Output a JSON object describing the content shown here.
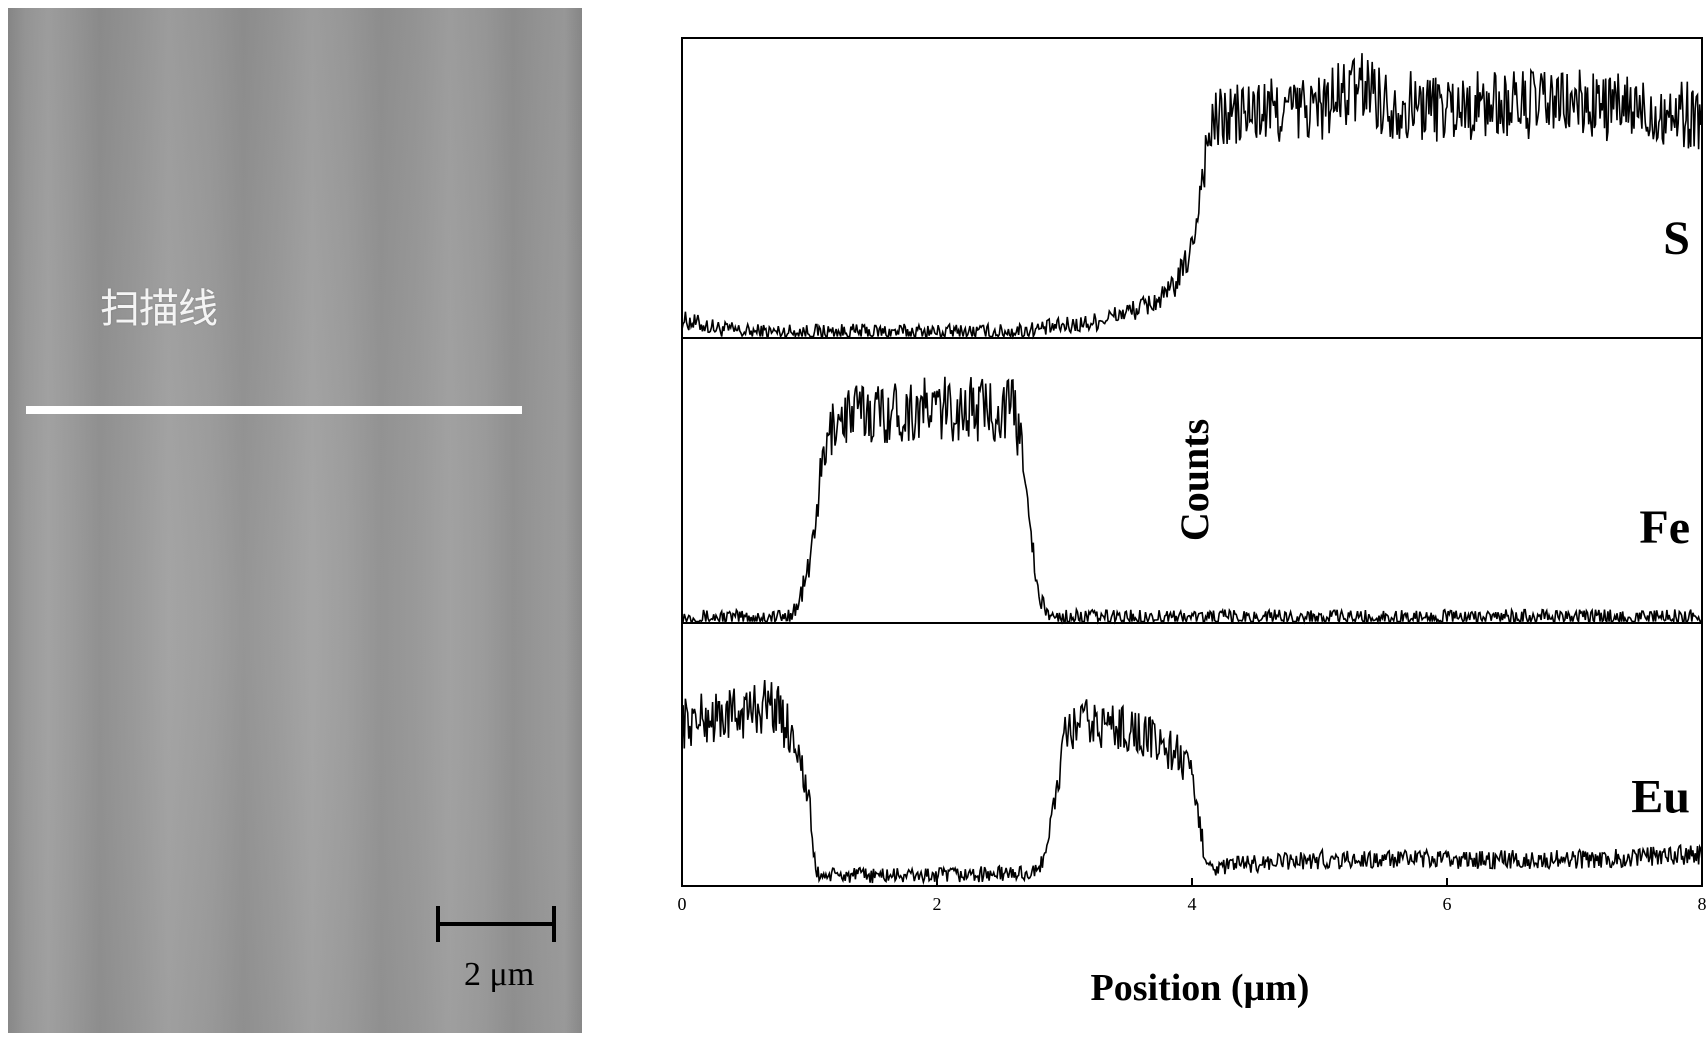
{
  "sem_image": {
    "scan_label": "扫描线",
    "scale_label": "2 μm"
  },
  "chart_data": {
    "type": "line",
    "xlabel": "Position (μm)",
    "ylabel": "Counts",
    "xlim": [
      0,
      8
    ],
    "x_ticks": [
      0,
      2,
      4,
      6,
      8
    ],
    "grid": false,
    "series": [
      {
        "name": "S",
        "x": [
          0,
          0.3,
          0.5,
          1,
          1.5,
          2,
          2.5,
          2.8,
          3.2,
          3.6,
          3.8,
          3.9,
          4.0,
          4.05,
          4.1,
          4.15,
          4.2,
          4.3,
          4.5,
          5,
          5.4,
          5.5,
          6,
          6.5,
          7,
          7.5,
          8
        ],
        "y": [
          0.06,
          0.03,
          0.02,
          0.02,
          0.02,
          0.02,
          0.02,
          0.03,
          0.05,
          0.1,
          0.14,
          0.2,
          0.3,
          0.45,
          0.6,
          0.7,
          0.72,
          0.74,
          0.75,
          0.77,
          0.85,
          0.78,
          0.77,
          0.78,
          0.78,
          0.76,
          0.74
        ]
      },
      {
        "name": "Fe",
        "x": [
          0,
          0.8,
          0.9,
          1.0,
          1.1,
          1.2,
          1.4,
          2,
          2.6,
          2.7,
          2.75,
          2.8,
          2.9,
          3.0,
          5,
          8
        ],
        "y": [
          0.02,
          0.02,
          0.05,
          0.2,
          0.55,
          0.72,
          0.74,
          0.75,
          0.75,
          0.55,
          0.25,
          0.08,
          0.02,
          0.02,
          0.02,
          0.02
        ]
      },
      {
        "name": "Eu",
        "x": [
          0,
          0.5,
          0.7,
          0.9,
          1.0,
          1.05,
          1.1,
          1.5,
          2,
          2.8,
          2.9,
          3.0,
          3.1,
          3.5,
          3.9,
          4.0,
          4.1,
          4.2,
          4.3,
          5,
          6,
          7,
          8
        ],
        "y": [
          0.62,
          0.66,
          0.7,
          0.55,
          0.3,
          0.05,
          0.04,
          0.04,
          0.04,
          0.05,
          0.25,
          0.55,
          0.62,
          0.6,
          0.5,
          0.4,
          0.12,
          0.06,
          0.08,
          0.1,
          0.1,
          0.1,
          0.12
        ]
      }
    ]
  }
}
